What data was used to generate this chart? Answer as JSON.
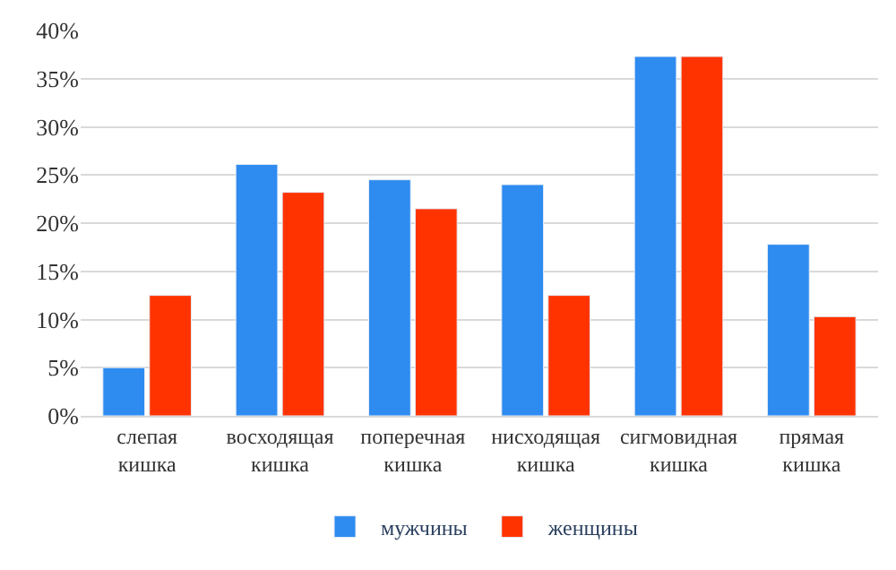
{
  "chart_data": {
    "type": "bar",
    "categories": [
      "слепая\nкишка",
      "восходящая\nкишка",
      "поперечная\nкишка",
      "нисходящая\nкишка",
      "сигмовидная\nкишка",
      "прямая\nкишка"
    ],
    "series": [
      {
        "name": "мужчины",
        "color": "#2e8bf0",
        "values": [
          5.0,
          26.1,
          24.5,
          24.0,
          37.3,
          17.8
        ]
      },
      {
        "name": "женщины",
        "color": "#ff3300",
        "values": [
          12.5,
          23.2,
          21.5,
          12.5,
          37.3,
          10.3
        ]
      }
    ],
    "ylim": [
      0,
      40
    ],
    "yticks": [
      {
        "value": 0,
        "label": "0%"
      },
      {
        "value": 5,
        "label": "5%"
      },
      {
        "value": 10,
        "label": "10%"
      },
      {
        "value": 15,
        "label": "15%"
      },
      {
        "value": 20,
        "label": "20%"
      },
      {
        "value": 25,
        "label": "25%"
      },
      {
        "value": 30,
        "label": "30%"
      },
      {
        "value": 35,
        "label": "35%"
      },
      {
        "value": 40,
        "label": "40%"
      }
    ],
    "grid": "y",
    "legend": "bottom"
  }
}
